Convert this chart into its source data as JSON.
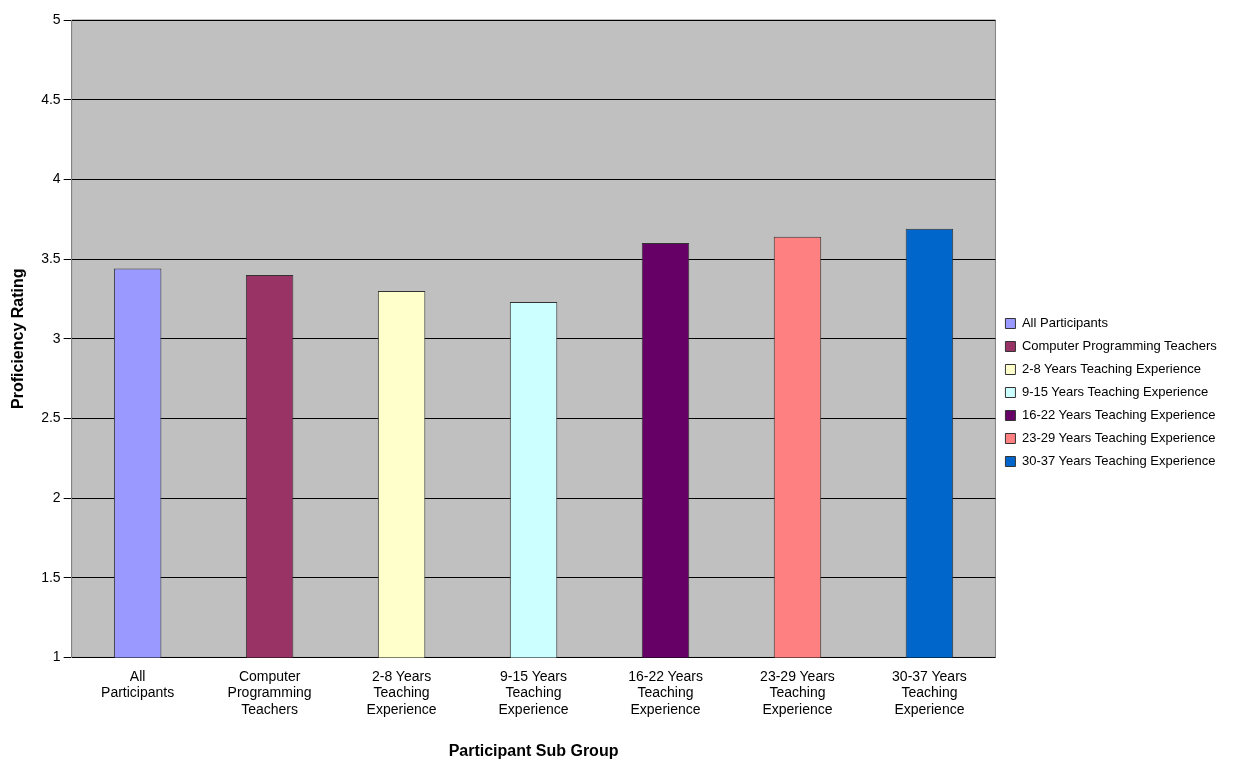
{
  "chart_data": {
    "type": "bar",
    "xlabel": "Participant Sub Group",
    "ylabel": "Proficiency Rating",
    "categories": [
      "All Participants",
      "Computer Programming Teachers",
      "2-8 Years Teaching Experience",
      "9-15 Years Teaching Experience",
      "16-22 Years Teaching Experience",
      "23-29 Years Teaching Experience",
      "30-37 Years Teaching Experience"
    ],
    "series": [
      {
        "name": "All Participants",
        "color": "#9999ff",
        "values": [
          3.44,
          null,
          null,
          null,
          null,
          null,
          null
        ]
      },
      {
        "name": "Computer Programming Teachers",
        "color": "#993366",
        "values": [
          null,
          3.4,
          null,
          null,
          null,
          null,
          null
        ]
      },
      {
        "name": "2-8 Years Teaching Experience",
        "color": "#ffffcc",
        "values": [
          null,
          null,
          3.3,
          null,
          null,
          null,
          null
        ]
      },
      {
        "name": "9-15 Years Teaching Experience",
        "color": "#ccffff",
        "values": [
          null,
          null,
          null,
          3.23,
          null,
          null,
          null
        ]
      },
      {
        "name": "16-22 Years Teaching Experience",
        "color": "#660066",
        "values": [
          null,
          null,
          null,
          null,
          3.6,
          null,
          null
        ]
      },
      {
        "name": "23-29 Years Teaching Experience",
        "color": "#ff8080",
        "values": [
          null,
          null,
          null,
          null,
          null,
          3.64,
          null
        ]
      },
      {
        "name": "30-37 Years Teaching Experience",
        "color": "#0066cc",
        "values": [
          null,
          null,
          null,
          null,
          null,
          null,
          3.69
        ]
      }
    ],
    "ylim": [
      1,
      5
    ],
    "yticks": [
      1,
      1.5,
      2,
      2.5,
      3,
      3.5,
      4,
      4.5,
      5
    ],
    "grid": "y",
    "legend": "right"
  }
}
